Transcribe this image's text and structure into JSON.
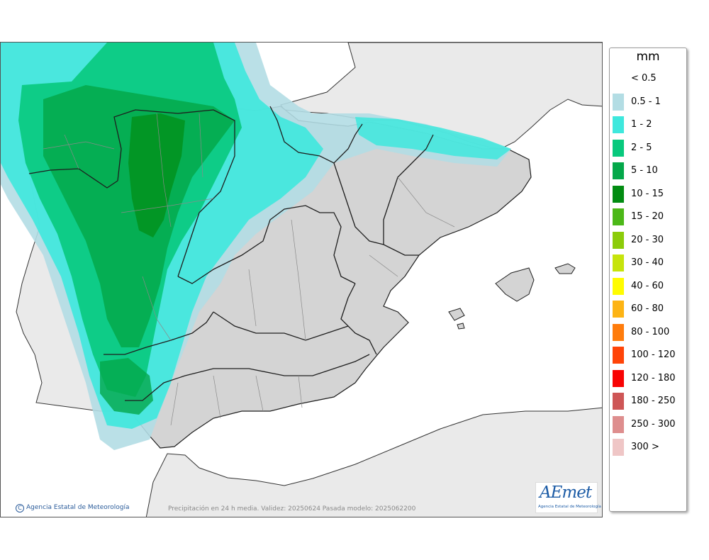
{
  "map": {
    "caption": "Precipitación en 24 h media. Validez: 20250624 Pasada modelo: 2025062200",
    "copyright": "Agencia Estatal de Meteorología",
    "copyright_symbol": "C",
    "logo_text": "AEmet",
    "logo_subtitle": "Agencia Estatal de Meteorología",
    "colors": {
      "sea": "#ffffff",
      "foreign_land": "#eaeaea",
      "spain_land": "#d4d4d4",
      "region_border": "#1e1e1e",
      "province_border": "#8a8a8a"
    }
  },
  "legend": {
    "unit": "mm",
    "items": [
      {
        "label": "< 0.5",
        "color": "#ffffff"
      },
      {
        "label": "0.5 - 1",
        "color": "#b3dde4"
      },
      {
        "label": "1 - 2",
        "color": "#3ee8dd"
      },
      {
        "label": "2 - 5",
        "color": "#08c97d"
      },
      {
        "label": "5 - 10",
        "color": "#04a84a"
      },
      {
        "label": "10 - 15",
        "color": "#028c12"
      },
      {
        "label": "15 - 20",
        "color": "#4cb818"
      },
      {
        "label": "20 - 30",
        "color": "#8ccc0a"
      },
      {
        "label": "30 - 40",
        "color": "#c6e40c"
      },
      {
        "label": "40 - 60",
        "color": "#fffc00"
      },
      {
        "label": "60 - 80",
        "color": "#fdb414"
      },
      {
        "label": "80 - 100",
        "color": "#ff7c0c"
      },
      {
        "label": "100 - 120",
        "color": "#ff4408"
      },
      {
        "label": "120 - 180",
        "color": "#f80404"
      },
      {
        "label": "180 - 250",
        "color": "#ce5656"
      },
      {
        "label": "250 - 300",
        "color": "#de8e8e"
      },
      {
        "label": "300 >",
        "color": "#efc6c6"
      }
    ]
  }
}
